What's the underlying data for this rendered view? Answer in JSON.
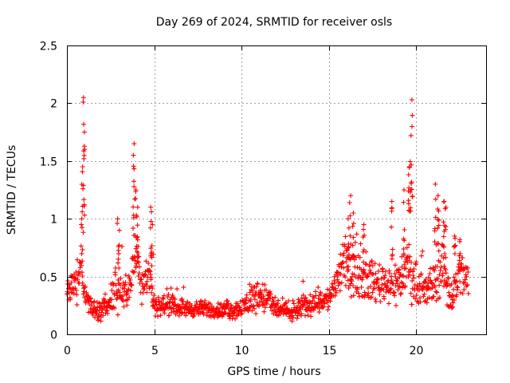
{
  "chart_data": {
    "type": "scatter",
    "title": "Day 269 of 2024, SRMTID for receiver osls",
    "xlabel": "GPS time / hours",
    "ylabel": "SRMTID / TECUs",
    "xlim": [
      0,
      24
    ],
    "ylim": [
      0,
      2.5
    ],
    "xticks": [
      0,
      5,
      10,
      15,
      20
    ],
    "yticks": [
      0,
      0.5,
      1,
      1.5,
      2,
      2.5
    ],
    "xtick_labels": [
      "0",
      "5",
      "10",
      "15",
      "20"
    ],
    "ytick_labels": [
      "0",
      "0.5",
      "1",
      "1.5",
      "2",
      "2.5"
    ],
    "grid": true,
    "marker": "+",
    "color": "#ff0000",
    "series": [
      {
        "name": "SRMTID",
        "envelope": [
          [
            0.0,
            0.35,
            0.2
          ],
          [
            0.3,
            0.45,
            0.2
          ],
          [
            0.6,
            0.4,
            0.2
          ],
          [
            0.8,
            0.6,
            0.3
          ],
          [
            1.0,
            0.35,
            0.15
          ],
          [
            1.5,
            0.2,
            0.12
          ],
          [
            2.0,
            0.2,
            0.12
          ],
          [
            2.5,
            0.3,
            0.2
          ],
          [
            3.0,
            0.4,
            0.25
          ],
          [
            3.5,
            0.35,
            0.2
          ],
          [
            3.9,
            0.7,
            0.35
          ],
          [
            4.3,
            0.45,
            0.25
          ],
          [
            4.7,
            0.55,
            0.3
          ],
          [
            5.0,
            0.25,
            0.12
          ],
          [
            6.0,
            0.25,
            0.12
          ],
          [
            7.0,
            0.22,
            0.1
          ],
          [
            8.0,
            0.22,
            0.1
          ],
          [
            9.0,
            0.2,
            0.1
          ],
          [
            10.0,
            0.22,
            0.12
          ],
          [
            10.5,
            0.3,
            0.2
          ],
          [
            11.0,
            0.35,
            0.2
          ],
          [
            11.5,
            0.3,
            0.2
          ],
          [
            12.0,
            0.22,
            0.12
          ],
          [
            13.0,
            0.18,
            0.1
          ],
          [
            13.5,
            0.25,
            0.15
          ],
          [
            14.0,
            0.25,
            0.12
          ],
          [
            14.5,
            0.3,
            0.15
          ],
          [
            15.0,
            0.3,
            0.15
          ],
          [
            15.5,
            0.5,
            0.3
          ],
          [
            16.0,
            0.6,
            0.35
          ],
          [
            16.5,
            0.55,
            0.3
          ],
          [
            17.0,
            0.5,
            0.3
          ],
          [
            17.5,
            0.45,
            0.25
          ],
          [
            18.0,
            0.45,
            0.25
          ],
          [
            18.5,
            0.45,
            0.25
          ],
          [
            19.0,
            0.45,
            0.3
          ],
          [
            19.5,
            0.6,
            0.35
          ],
          [
            20.0,
            0.4,
            0.25
          ],
          [
            20.5,
            0.35,
            0.25
          ],
          [
            21.0,
            0.45,
            0.3
          ],
          [
            21.5,
            0.6,
            0.35
          ],
          [
            22.0,
            0.3,
            0.25
          ],
          [
            22.5,
            0.55,
            0.3
          ],
          [
            23.0,
            0.45,
            0.25
          ]
        ],
        "spikes": [
          [
            0.85,
            1.0
          ],
          [
            0.9,
            1.45
          ],
          [
            0.95,
            2.05
          ],
          [
            1.0,
            1.75
          ],
          [
            2.9,
            1.0
          ],
          [
            3.0,
            0.9
          ],
          [
            3.8,
            1.55
          ],
          [
            3.85,
            1.65
          ],
          [
            3.95,
            1.25
          ],
          [
            4.05,
            1.1
          ],
          [
            4.8,
            1.1
          ],
          [
            4.9,
            0.95
          ],
          [
            16.1,
            1.0
          ],
          [
            16.25,
            1.2
          ],
          [
            16.4,
            1.05
          ],
          [
            17.0,
            0.95
          ],
          [
            18.6,
            1.15
          ],
          [
            19.3,
            1.25
          ],
          [
            19.6,
            1.45
          ],
          [
            19.75,
            2.03
          ],
          [
            19.7,
            1.72
          ],
          [
            21.1,
            1.3
          ],
          [
            21.25,
            1.2
          ],
          [
            21.6,
            1.15
          ],
          [
            21.7,
            1.1
          ],
          [
            22.2,
            0.85
          ],
          [
            22.5,
            0.82
          ]
        ],
        "step_hours": 0.018,
        "seed": 269
      }
    ]
  }
}
